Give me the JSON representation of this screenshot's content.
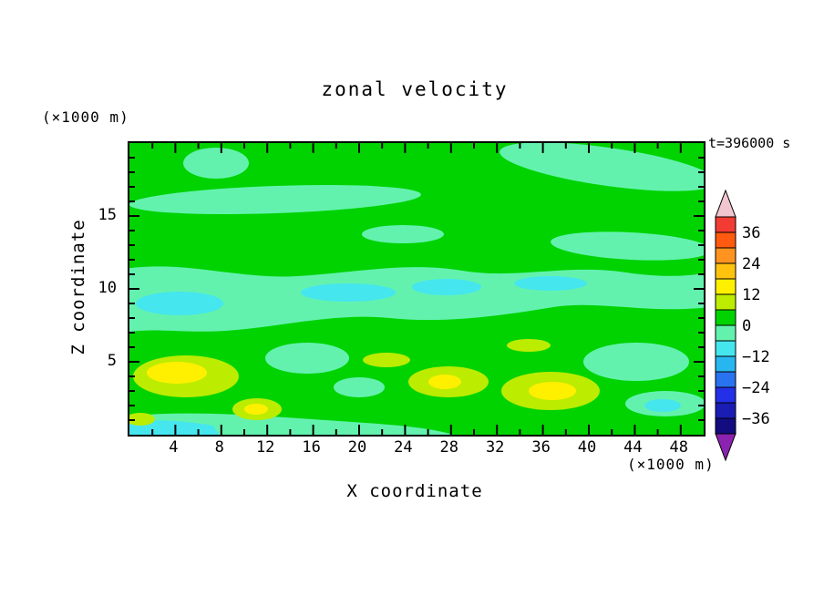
{
  "title": "zonal velocity",
  "annotations": {
    "time": "t=396000 s",
    "y_unit": "(×1000 m)",
    "x_unit": "(×1000 m)"
  },
  "axes": {
    "x": {
      "label": "X coordinate",
      "min": 0,
      "max": 50,
      "major_step": 4,
      "minor_step": 2,
      "tick_labels": [
        "4",
        "8",
        "12",
        "16",
        "20",
        "24",
        "28",
        "32",
        "36",
        "40",
        "44",
        "48"
      ]
    },
    "z": {
      "label": "Z coordinate",
      "min": 0,
      "max": 20,
      "major_step": 5,
      "minor_step": 1,
      "tick_labels": [
        "15",
        "10",
        "5"
      ]
    }
  },
  "colorbar": {
    "labels": [
      "36",
      "24",
      "12",
      "0",
      "−12",
      "−24",
      "−36"
    ],
    "levels": [
      42,
      36,
      30,
      24,
      18,
      12,
      6,
      0,
      -6,
      -12,
      -18,
      -24,
      -30,
      -36,
      -42
    ],
    "segment_colors": [
      "#F23B32",
      "#FF5A0F",
      "#FF9320",
      "#FFC30F",
      "#FFF000",
      "#BCEC00",
      "#00D300",
      "#63F2AE",
      "#45E6EE",
      "#28B6F0",
      "#2973F0",
      "#2430E8",
      "#1A1CB4",
      "#120C80"
    ],
    "over_color": "#F2C6CF",
    "under_color": "#8B22B0"
  },
  "colors": {
    "green": "#00D300",
    "aquamarine": "#63F2AE",
    "cyan": "#45E6EE",
    "chartreuse": "#BCEC00",
    "yellow": "#FFF000",
    "frame": "#000000",
    "background": "#FFFFFF"
  },
  "chart_data": {
    "type": "heatmap",
    "subtype": "filled-contour",
    "title": "zonal velocity",
    "xlabel": "X coordinate (×1000 m)",
    "ylabel": "Z coordinate (×1000 m)",
    "time_annotation": "t=396000 s",
    "x_range": [
      0,
      50
    ],
    "z_range": [
      0,
      20
    ],
    "contour_interval": 6,
    "levels": [
      -42,
      -36,
      -30,
      -24,
      -18,
      -12,
      -6,
      0,
      6,
      12,
      18,
      24,
      30,
      36,
      42
    ],
    "colorbar_tick_labels": [
      36,
      24,
      12,
      0,
      -12,
      -24,
      -36
    ],
    "legend_position": "right",
    "grid": false,
    "x_centers": [
      2.5,
      7.5,
      12.5,
      17.5,
      22.5,
      27.5,
      32.5,
      37.5,
      42.5,
      47.5
    ],
    "z_centers": [
      19,
      17,
      15,
      13,
      11,
      9,
      7,
      5,
      3,
      1
    ],
    "values_note": "approximate band midpoint values read from fill colors; rows ordered top (z=19) to bottom (z=1)",
    "values": [
      [
        3,
        3,
        -3,
        3,
        3,
        3,
        3,
        -3,
        -3,
        -3
      ],
      [
        3,
        -3,
        3,
        3,
        3,
        3,
        3,
        3,
        -3,
        -3
      ],
      [
        3,
        -3,
        -3,
        3,
        3,
        3,
        3,
        3,
        -3,
        3
      ],
      [
        3,
        3,
        3,
        3,
        -3,
        3,
        3,
        -3,
        -3,
        3
      ],
      [
        3,
        3,
        3,
        3,
        3,
        3,
        3,
        3,
        3,
        3
      ],
      [
        -9,
        -3,
        -9,
        -3,
        -9,
        -9,
        -3,
        -9,
        -3,
        -3
      ],
      [
        -3,
        3,
        3,
        -3,
        3,
        3,
        3,
        3,
        -3,
        -3
      ],
      [
        3,
        9,
        3,
        3,
        3,
        3,
        9,
        3,
        -3,
        -3
      ],
      [
        15,
        9,
        9,
        3,
        9,
        9,
        15,
        9,
        -3,
        -3
      ],
      [
        -9,
        -3,
        9,
        3,
        3,
        3,
        9,
        3,
        3,
        3
      ]
    ]
  }
}
